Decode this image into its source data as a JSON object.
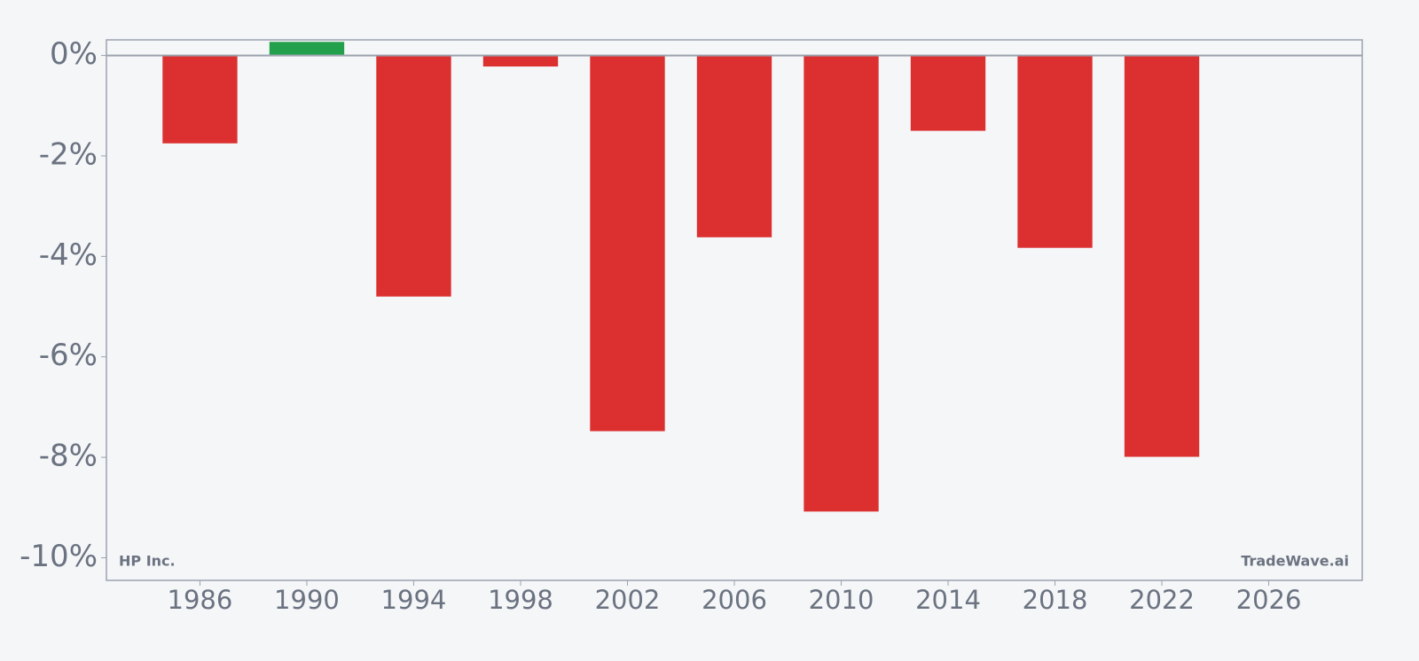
{
  "chart_data": {
    "type": "bar",
    "x": [
      1986,
      1990,
      1994,
      1998,
      2002,
      2006,
      2010,
      2014,
      2018,
      2022
    ],
    "values": [
      -1.75,
      0.27,
      -4.8,
      -0.22,
      -7.48,
      -3.62,
      -9.08,
      -1.5,
      -3.83,
      -7.99
    ],
    "positive_color": "#22a04b",
    "negative_color": "#dc3030",
    "xlim": [
      1982.5,
      2029.5
    ],
    "ylim": [
      -10.45,
      0.31
    ],
    "xticks": [
      1986,
      1990,
      1994,
      1998,
      2002,
      2006,
      2010,
      2014,
      2018,
      2022,
      2026
    ],
    "yticks": [
      {
        "value": 0,
        "label": "0%"
      },
      {
        "value": -2,
        "label": "-2%"
      },
      {
        "value": -4,
        "label": "-4%"
      },
      {
        "value": -6,
        "label": "-6%"
      },
      {
        "value": -8,
        "label": "-8%"
      },
      {
        "value": -10,
        "label": "-10%"
      }
    ],
    "annotations": [
      "HP Inc.",
      "TradeWave.ai"
    ]
  }
}
